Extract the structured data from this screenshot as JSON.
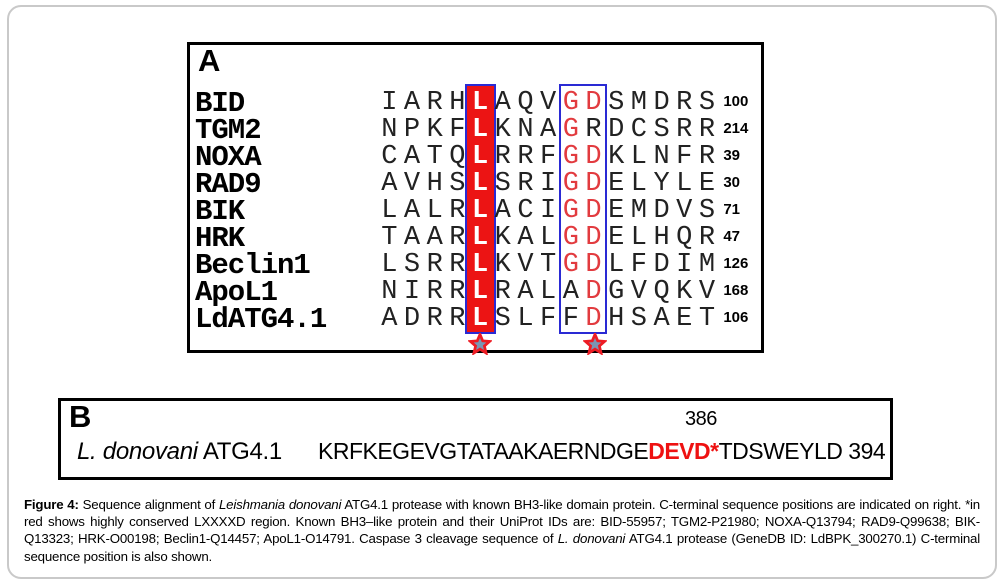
{
  "colors": {
    "red": "#ec1414",
    "letter_red": "#e23b3f",
    "blue": "#2a2ad4",
    "devd_red": "#ee1111",
    "star_fill": "#7a96b4",
    "star_stroke": "#ed1c24",
    "border_gray": "#c9c9c9"
  },
  "panelA": {
    "label": "A",
    "l_col_index": 4,
    "box_col_indices": [
      8,
      9
    ],
    "rows": [
      {
        "name": "BID",
        "seq": "IARHLAQVGDSMDRS",
        "num": "100",
        "box_red": [
          true,
          true
        ]
      },
      {
        "name": "TGM2",
        "seq": "NPKFLKNAGRDCSRR",
        "num": "214",
        "box_red": [
          true,
          false
        ]
      },
      {
        "name": "NOXA",
        "seq": "CATQLRRFGDKLNFR",
        "num": "39",
        "box_red": [
          true,
          true
        ]
      },
      {
        "name": "RAD9",
        "seq": "AVHSLSRIGDELYLE",
        "num": "30",
        "box_red": [
          true,
          true
        ]
      },
      {
        "name": "BIK",
        "seq": "LALRLACIGDEMDVS",
        "num": "71",
        "box_red": [
          true,
          true
        ]
      },
      {
        "name": "HRK",
        "seq": "TAARLKALGDELHQR",
        "num": "47",
        "box_red": [
          true,
          true
        ]
      },
      {
        "name": "Beclin1",
        "seq": "LSRRLKVTGDLFDIM",
        "num": "126",
        "box_red": [
          true,
          true
        ]
      },
      {
        "name": "ApoL1",
        "seq": "NIRRLRALADGVQKV",
        "num": "168",
        "box_red": [
          false,
          true
        ]
      },
      {
        "name": "LdATG4.1",
        "seq": "ADRRLSLFFDHSAET",
        "num": "106",
        "box_red": [
          false,
          true
        ]
      }
    ]
  },
  "panelB": {
    "label": "B",
    "organism": "L. donovani",
    "protein": " ATG4.1",
    "seq_pre": "KRFKEGEVGTATAAKAERNDGE",
    "seq_red": "DEVD*",
    "seq_post": "TDSWEYLD",
    "pos_top": "386",
    "pos_end": " 394"
  },
  "caption": {
    "segments": [
      {
        "t": "Figure 4: ",
        "b": true
      },
      {
        "t": "Sequence alignment of "
      },
      {
        "t": "Leishmania donovani",
        "i": true
      },
      {
        "t": " ATG4.1 protease with known BH3-like domain protein. C-terminal sequence positions are indicated on right. *in red shows highly conserved LXXXXD region. Known BH3–like protein and their UniProt IDs are: BID-55957; TGM2-P21980; NOXA-Q13794; RAD9-Q99638; BIK-Q13323; HRK-O00198; Beclin1-Q14457; ApoL1-O14791. Caspase 3 cleavage sequence of "
      },
      {
        "t": "L. donovani",
        "i": true
      },
      {
        "t": " ATG4.1 protease (GeneDB ID: LdBPK_300270.1) C-terminal sequence position is also shown."
      }
    ]
  }
}
